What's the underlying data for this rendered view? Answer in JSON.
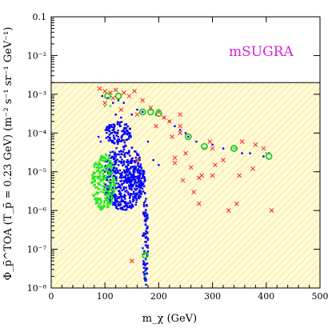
{
  "chart_data": {
    "type": "scatter",
    "annotation": "mSUGRA",
    "annotation_color": "#d623d6",
    "xlabel": "m_χ (GeV)",
    "ylabel": "Φ_p̄^TOA (T_p̄ = 0.23 GeV)  (m⁻² s⁻¹ sr⁻¹ GeV⁻¹)",
    "xlim": [
      0,
      500
    ],
    "ylim": [
      1e-08,
      0.1
    ],
    "yscale": "log",
    "x_ticks": [
      "0",
      "100",
      "200",
      "300",
      "400",
      "500"
    ],
    "y_ticks": [
      "10⁻⁸",
      "10⁻⁷",
      "10⁻⁶",
      "10⁻⁵",
      "10⁻⁴",
      "10⁻³",
      "10⁻²",
      "0.1"
    ],
    "shaded_region": {
      "y_max": 0.002,
      "color": "#fffbd6",
      "hatch_color": "#f4e6a4"
    },
    "series": [
      {
        "color": "#0000ff",
        "marker": "dot",
        "clusters": [
          {
            "x": [
              95,
              175
            ],
            "y": [
              1e-06,
              5e-05
            ]
          },
          {
            "x": [
              100,
              150
            ],
            "y": [
              5e-05,
              0.0002
            ]
          },
          {
            "x": [
              140,
              175
            ],
            "y": [
              4e-06,
              1e-05
            ]
          },
          {
            "x": [
              170,
              180
            ],
            "y": [
              1e-08,
              3e-06
            ]
          }
        ],
        "points": [
          [
            95,
            0.0009
          ],
          [
            105,
            0.0008
          ],
          [
            115,
            0.0006
          ],
          [
            125,
            0.0007
          ],
          [
            135,
            0.0006
          ],
          [
            150,
            0.0003
          ],
          [
            160,
            0.0004
          ],
          [
            170,
            0.00035
          ],
          [
            185,
            0.0004
          ],
          [
            195,
            0.0003
          ],
          [
            210,
            0.00025
          ],
          [
            220,
            0.0002
          ],
          [
            230,
            0.00015
          ],
          [
            240,
            0.00012
          ],
          [
            250,
            0.0001
          ],
          [
            255,
            8e-05
          ],
          [
            270,
            6e-05
          ],
          [
            300,
            5e-05
          ],
          [
            320,
            4e-05
          ],
          [
            345,
            4e-05
          ],
          [
            355,
            3e-05
          ],
          [
            370,
            3e-05
          ],
          [
            395,
            2.5e-05
          ],
          [
            405,
            3e-05
          ],
          [
            120,
            0.0003
          ],
          [
            130,
            0.00025
          ],
          [
            108,
            0.00015
          ],
          [
            88,
            8e-05
          ],
          [
            92,
            6e-05
          ],
          [
            180,
            6e-05
          ],
          [
            190,
            2e-05
          ],
          [
            200,
            1.5e-05
          ]
        ]
      },
      {
        "color": "#22e822",
        "marker": "dot",
        "clusters": [
          {
            "x": [
              75,
              120
            ],
            "y": [
              1e-06,
              3e-05
            ]
          }
        ],
        "points": [
          [
            100,
            0.0005
          ],
          [
            110,
            0.0005
          ],
          [
            185,
            0.0004
          ],
          [
            200,
            0.0004
          ],
          [
            175,
            8e-08
          ],
          [
            175,
            2e-08
          ],
          [
            285,
            4e-05
          ],
          [
            340,
            4e-05
          ],
          [
            400,
            3e-05
          ]
        ]
      },
      {
        "color": "#ff2222",
        "marker": "x",
        "points": [
          [
            90,
            0.0014
          ],
          [
            100,
            0.0012
          ],
          [
            110,
            0.0011
          ],
          [
            120,
            0.0013
          ],
          [
            135,
            0.0011
          ],
          [
            145,
            0.0009
          ],
          [
            155,
            0.0012
          ],
          [
            170,
            0.0007
          ],
          [
            185,
            0.00045
          ],
          [
            200,
            0.00035
          ],
          [
            210,
            0.00025
          ],
          [
            220,
            0.0002
          ],
          [
            240,
            0.00015
          ],
          [
            250,
            3e-05
          ],
          [
            260,
            1.3e-05
          ],
          [
            265,
            3e-06
          ],
          [
            275,
            7e-06
          ],
          [
            275,
            1.5e-06
          ],
          [
            280,
            8e-06
          ],
          [
            295,
            6e-05
          ],
          [
            300,
            4e-05
          ],
          [
            305,
            1.5e-05
          ],
          [
            320,
            2e-05
          ],
          [
            330,
            1e-06
          ],
          [
            345,
            1.5e-06
          ],
          [
            350,
            8e-06
          ],
          [
            355,
            6e-05
          ],
          [
            375,
            1.2e-05
          ],
          [
            380,
            5e-05
          ],
          [
            395,
            4e-05
          ],
          [
            240,
            0.0001
          ],
          [
            230,
            1.7e-05
          ],
          [
            245,
            6e-06
          ],
          [
            230,
            2.3e-05
          ],
          [
            410,
            1e-06
          ],
          [
            150,
            5e-08
          ],
          [
            160,
            2e-05
          ],
          [
            240,
            0.0003
          ],
          [
            195,
            0.00015
          ],
          [
            130,
            0.0004
          ],
          [
            115,
            0.0008
          ],
          [
            100,
            0.0006
          ],
          [
            160,
            0.0003
          ],
          [
            225,
            8e-05
          ],
          [
            300,
            8e-06
          ]
        ]
      },
      {
        "color": "#22cc22",
        "marker": "ring",
        "points": [
          [
            105,
            0.0009
          ],
          [
            125,
            0.0009
          ],
          [
            170,
            0.00035
          ],
          [
            185,
            0.00035
          ],
          [
            200,
            0.00032
          ],
          [
            255,
            8e-05
          ],
          [
            285,
            4.5e-05
          ],
          [
            340,
            4e-05
          ],
          [
            405,
            2.5e-05
          ],
          [
            175,
            7e-08
          ]
        ]
      }
    ]
  }
}
